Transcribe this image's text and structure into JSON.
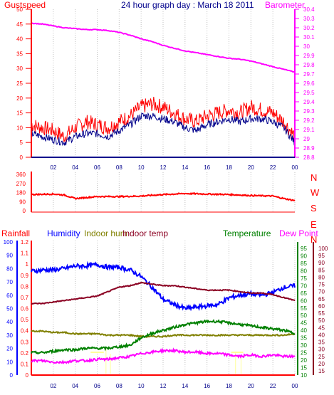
{
  "title": "24 hour graph day : March 18 2011",
  "colors": {
    "background": "#ffffff",
    "gustspeed": "#ff0000",
    "windspeed": "#00008b",
    "barometer": "#ff00ff",
    "direction": "#ff0000",
    "rainfall": "#ff0000",
    "humidity": "#0000ff",
    "indoor_hum": "#808000",
    "indoor_temp": "#8b0022",
    "temperature": "#008000",
    "dew_point": "#ff00ff",
    "solar": "#ffff99",
    "grid": "#c0c0c0"
  },
  "x_ticks": [
    "02",
    "04",
    "06",
    "08",
    "10",
    "12",
    "14",
    "16",
    "18",
    "20",
    "22",
    "00"
  ],
  "chart_data": [
    {
      "type": "line",
      "panel": "wind-barometer",
      "left_axis_label": "Gustspeed",
      "right_axis_label": "Barometer",
      "left_ylim": [
        0,
        50
      ],
      "left_ticks": [
        "0",
        "5",
        "10",
        "15",
        "20",
        "25",
        "30",
        "35",
        "40",
        "45",
        "50"
      ],
      "right_ylim": [
        28.8,
        30.4
      ],
      "right_ticks": [
        "28.8",
        "28.9",
        "29",
        "29.1",
        "29.2",
        "29.3",
        "29.4",
        "29.5",
        "29.6",
        "29.7",
        "29.8",
        "29.9",
        "30",
        "30.1",
        "30.2",
        "30.3",
        "30.4"
      ],
      "x_hours": [
        0,
        1,
        2,
        3,
        4,
        5,
        6,
        7,
        8,
        9,
        10,
        11,
        12,
        13,
        14,
        15,
        16,
        17,
        18,
        19,
        20,
        21,
        22,
        23,
        24
      ],
      "series": [
        {
          "key": "gust",
          "values": [
            11,
            10,
            9,
            7,
            10,
            12,
            11,
            10,
            12,
            14,
            17,
            18,
            17,
            15,
            13,
            12,
            14,
            15,
            16,
            15,
            17,
            16,
            15,
            12,
            7
          ]
        },
        {
          "key": "wind",
          "values": [
            8,
            7,
            6,
            5,
            7,
            8,
            8,
            7,
            9,
            11,
            14,
            14,
            13,
            12,
            10,
            9,
            11,
            12,
            13,
            12,
            13,
            13,
            12,
            10,
            5
          ]
        },
        {
          "key": "barometer",
          "values": [
            30.25,
            30.24,
            30.22,
            30.2,
            30.19,
            30.18,
            30.18,
            30.17,
            30.15,
            30.12,
            30.08,
            30.05,
            30.01,
            29.98,
            29.95,
            29.93,
            29.91,
            29.89,
            29.87,
            29.86,
            29.84,
            29.81,
            29.78,
            29.75,
            29.72
          ]
        }
      ]
    },
    {
      "type": "line",
      "panel": "wind-direction",
      "ylim": [
        0,
        360
      ],
      "left_ticks": [
        "0",
        "90",
        "180",
        "270",
        "360"
      ],
      "right_labels": [
        "N",
        "W",
        "S",
        "E",
        "N"
      ],
      "x_hours": [
        0,
        2,
        3,
        4,
        6,
        8,
        10,
        12,
        14,
        16,
        18,
        20,
        22,
        23,
        24
      ],
      "series": [
        {
          "key": "direction",
          "values": [
            160,
            165,
            155,
            120,
            140,
            140,
            145,
            160,
            170,
            165,
            160,
            150,
            145,
            120,
            100
          ]
        }
      ]
    },
    {
      "type": "line",
      "panel": "climate",
      "rainfall_ticks": [
        "0",
        "0.1",
        "0.2",
        "0.3",
        "0.4",
        "0.5",
        "0.6",
        "0.7",
        "0.8",
        "0.9",
        "1",
        "1.1",
        "1.2"
      ],
      "humidity_ticks": [
        "0",
        "10",
        "20",
        "30",
        "40",
        "50",
        "60",
        "70",
        "80",
        "90",
        "100"
      ],
      "temp_ticks": [
        "10",
        "15",
        "20",
        "25",
        "30",
        "35",
        "40",
        "45",
        "50",
        "55",
        "60",
        "65",
        "70",
        "75",
        "80",
        "85",
        "90",
        "95"
      ],
      "dew_ticks": [
        "15",
        "20",
        "25",
        "30",
        "35",
        "40",
        "45",
        "50",
        "55",
        "60",
        "65",
        "70",
        "75",
        "80",
        "85",
        "90",
        "95",
        "100"
      ],
      "x_hours": [
        0,
        1,
        2,
        3,
        4,
        5,
        6,
        7,
        8,
        9,
        10,
        11,
        12,
        13,
        14,
        15,
        16,
        17,
        18,
        19,
        20,
        21,
        22,
        23,
        24
      ],
      "series": [
        {
          "key": "Rainfall",
          "axis": "rain",
          "values": [
            0,
            0,
            0,
            0,
            0,
            0,
            0,
            0,
            0,
            0,
            0,
            0,
            0,
            0,
            0,
            0,
            0,
            0,
            0,
            0,
            0,
            0,
            0,
            0,
            0
          ]
        },
        {
          "key": "Humidity",
          "axis": "hum",
          "values": [
            78,
            79,
            79,
            80,
            82,
            82,
            83,
            81,
            81,
            79,
            74,
            66,
            57,
            53,
            50,
            51,
            52,
            53,
            58,
            60,
            61,
            60,
            62,
            66,
            67
          ]
        },
        {
          "key": "Indoor hum",
          "axis": "hum",
          "values": [
            33,
            33,
            32,
            32,
            31,
            31,
            31,
            30,
            30,
            30,
            29,
            29,
            29,
            30,
            30,
            30,
            30,
            30,
            30,
            30,
            30,
            30,
            30,
            30,
            31
          ]
        },
        {
          "key": "Indoor temp",
          "axis": "temp",
          "values": [
            58,
            58,
            59,
            60,
            61,
            62,
            63,
            66,
            69,
            70,
            72,
            71,
            70,
            70,
            69,
            68,
            67,
            67,
            67,
            66,
            65,
            65,
            64,
            62,
            60
          ]
        },
        {
          "key": "Temperature",
          "axis": "temp",
          "values": [
            25,
            25,
            26,
            27,
            27,
            28,
            28,
            28,
            29,
            30,
            35,
            38,
            40,
            42,
            44,
            45,
            46,
            46,
            45,
            44,
            43,
            42,
            41,
            40,
            38
          ]
        },
        {
          "key": "Dew Point",
          "axis": "dew",
          "values": [
            22,
            22,
            21,
            21,
            22,
            22,
            23,
            23,
            24,
            25,
            27,
            28,
            29,
            29,
            28,
            28,
            27,
            27,
            26,
            25,
            26,
            25,
            26,
            25,
            25
          ]
        }
      ]
    }
  ]
}
